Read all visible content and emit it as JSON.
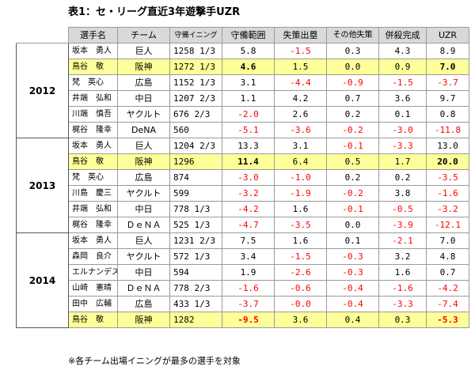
{
  "title": "表1：セ・リーグ直近3年遊撃手UZR",
  "headers": [
    "選手名",
    "チーム",
    "守備イニング",
    "守備範囲",
    "失策出塁",
    "その他失策",
    "併殺完成",
    "UZR"
  ],
  "years": [
    {
      "year": "2012",
      "rows": [
        {
          "name": "坂本　勇人",
          "team": "巨人",
          "inn": "1258 1/3",
          "rng": "5.8",
          "err_reach": "-1.5",
          "other_err": "0.3",
          "dp": "4.3",
          "uzr": "8.9",
          "hl": false
        },
        {
          "name": "鳥谷　敬",
          "team": "阪神",
          "inn": "1272 1/3",
          "rng": "4.6",
          "err_reach": "1.5",
          "other_err": "0.0",
          "dp": "0.9",
          "uzr": "7.0",
          "hl": true
        },
        {
          "name": "梵　英心",
          "team": "広島",
          "inn": "1152 1/3",
          "rng": "3.1",
          "err_reach": "-4.4",
          "other_err": "-0.9",
          "dp": "-1.5",
          "uzr": "-3.7",
          "hl": false
        },
        {
          "name": "井端　弘和",
          "team": "中日",
          "inn": "1207 2/3",
          "rng": "1.1",
          "err_reach": "4.2",
          "other_err": "0.7",
          "dp": "3.6",
          "uzr": "9.7",
          "hl": false
        },
        {
          "name": "川端　慎吾",
          "team": "ヤクルト",
          "inn": "676 2/3",
          "rng": "-2.0",
          "err_reach": "2.6",
          "other_err": "0.2",
          "dp": "0.1",
          "uzr": "0.8",
          "hl": false
        },
        {
          "name": "梶谷　隆幸",
          "team": "DeNA",
          "inn": "560",
          "rng": "-5.1",
          "err_reach": "-3.6",
          "other_err": "-0.2",
          "dp": "-3.0",
          "uzr": "-11.8",
          "hl": false
        }
      ]
    },
    {
      "year": "2013",
      "rows": [
        {
          "name": "坂本　勇人",
          "team": "巨人",
          "inn": "1204 2/3",
          "rng": "13.3",
          "err_reach": "3.1",
          "other_err": "-0.1",
          "dp": "-3.3",
          "uzr": "13.0",
          "hl": false
        },
        {
          "name": "鳥谷　敬",
          "team": "阪神",
          "inn": "1296",
          "rng": "11.4",
          "err_reach": "6.4",
          "other_err": "0.5",
          "dp": "1.7",
          "uzr": "20.0",
          "hl": true
        },
        {
          "name": "梵　英心",
          "team": "広島",
          "inn": "874",
          "rng": "-3.0",
          "err_reach": "-1.0",
          "other_err": "0.2",
          "dp": "0.2",
          "uzr": "-3.5",
          "hl": false
        },
        {
          "name": "川島　慶三",
          "team": "ヤクルト",
          "inn": "599",
          "rng": "-3.2",
          "err_reach": "-1.9",
          "other_err": "-0.2",
          "dp": "3.8",
          "uzr": "-1.6",
          "hl": false
        },
        {
          "name": "井端　弘和",
          "team": "中日",
          "inn": "778 1/3",
          "rng": "-4.2",
          "err_reach": "1.6",
          "other_err": "-0.1",
          "dp": "-0.5",
          "uzr": "-3.2",
          "hl": false
        },
        {
          "name": "梶谷　隆幸",
          "team": "ＤｅＮＡ",
          "inn": "525 1/3",
          "rng": "-4.7",
          "err_reach": "-3.5",
          "other_err": "0.0",
          "dp": "-3.9",
          "uzr": "-12.1",
          "hl": false
        }
      ]
    },
    {
      "year": "2014",
      "rows": [
        {
          "name": "坂本　勇人",
          "team": "巨人",
          "inn": "1231 2/3",
          "rng": "7.5",
          "err_reach": "1.6",
          "other_err": "0.1",
          "dp": "-2.1",
          "uzr": "7.0",
          "hl": false
        },
        {
          "name": "森岡　良介",
          "team": "ヤクルト",
          "inn": "572 1/3",
          "rng": "3.4",
          "err_reach": "-1.5",
          "other_err": "-0.3",
          "dp": "3.2",
          "uzr": "4.8",
          "hl": false
        },
        {
          "name": "エルナンデス",
          "team": "中日",
          "inn": "594",
          "rng": "1.9",
          "err_reach": "-2.6",
          "other_err": "-0.3",
          "dp": "1.6",
          "uzr": "0.7",
          "hl": false
        },
        {
          "name": "山崎　憲晴",
          "team": "ＤｅＮＡ",
          "inn": "778 2/3",
          "rng": "-1.6",
          "err_reach": "-0.6",
          "other_err": "-0.4",
          "dp": "-1.6",
          "uzr": "-4.2",
          "hl": false
        },
        {
          "name": "田中　広輔",
          "team": "広島",
          "inn": "433 1/3",
          "rng": "-3.7",
          "err_reach": "-0.0",
          "other_err": "-0.4",
          "dp": "-3.3",
          "uzr": "-7.4",
          "hl": false
        },
        {
          "name": "鳥谷　敬",
          "team": "阪神",
          "inn": "1282",
          "rng": "-9.5",
          "err_reach": "3.6",
          "other_err": "0.4",
          "dp": "0.3",
          "uzr": "-5.3",
          "hl": true
        }
      ]
    }
  ],
  "footnote": "※各チーム出場イニングが最多の選手を対象",
  "colors": {
    "header_bg": "#d9d9d9",
    "highlight": "#ffff99",
    "negative": "#ff0000",
    "cyan_cell": "#ddeef6"
  }
}
